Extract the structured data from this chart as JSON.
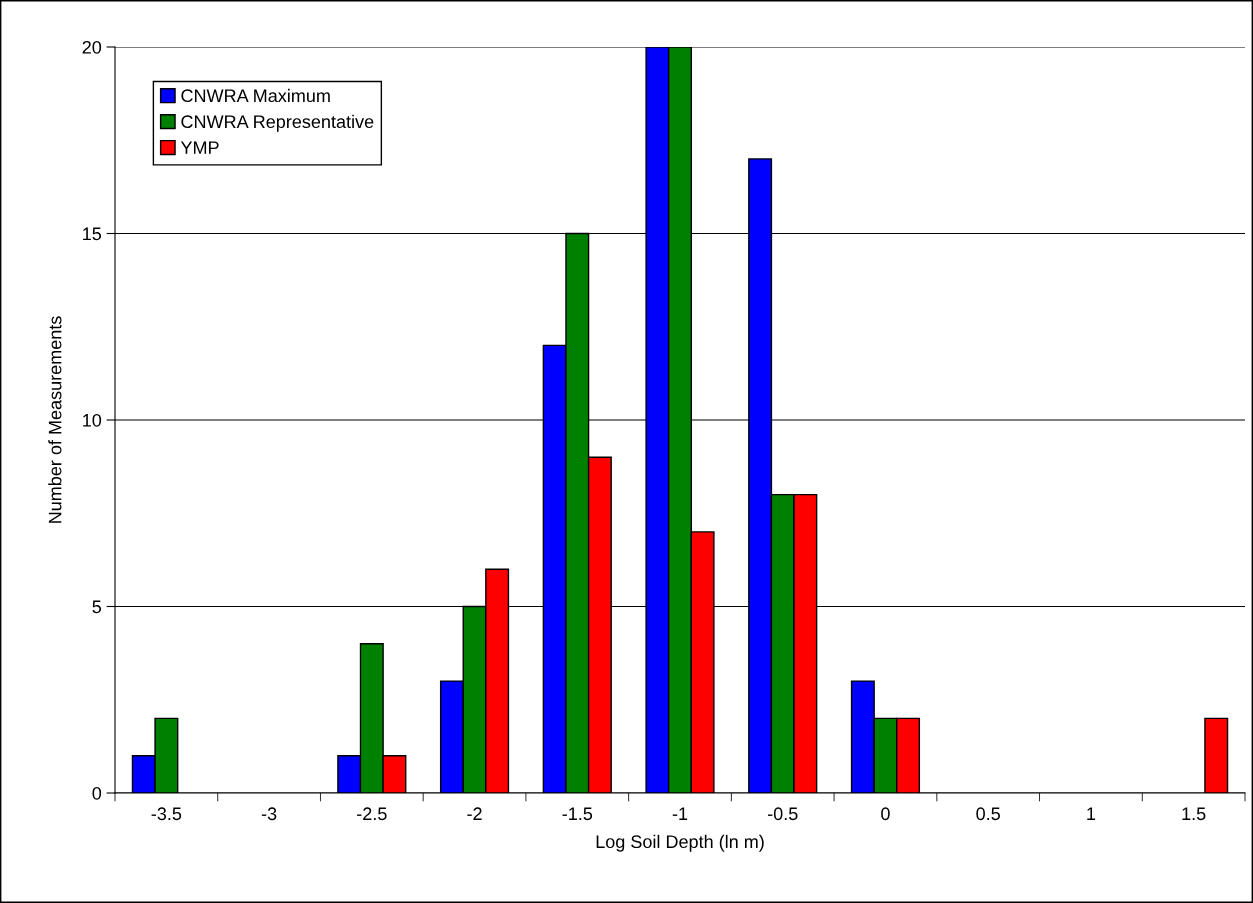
{
  "chart_data": {
    "type": "bar",
    "xlabel": "Log Soil Depth (ln m)",
    "ylabel": "Number of Measurements",
    "categories": [
      "-3.5",
      "-3",
      "-2.5",
      "-2",
      "-1.5",
      "-1",
      "-0.5",
      "0",
      "0.5",
      "1",
      "1.5"
    ],
    "series": [
      {
        "name": "CNWRA Maximum",
        "color": "#0000ff",
        "values": [
          1,
          0,
          1,
          3,
          12,
          20,
          17,
          3,
          0,
          0,
          0
        ]
      },
      {
        "name": "CNWRA Representative",
        "color": "#008000",
        "values": [
          2,
          0,
          4,
          5,
          15,
          20,
          8,
          2,
          0,
          0,
          0
        ]
      },
      {
        "name": "YMP",
        "color": "#ff0000",
        "values": [
          0,
          0,
          1,
          6,
          9,
          7,
          8,
          2,
          0,
          0,
          2
        ]
      }
    ],
    "ylim": [
      0,
      20
    ],
    "yticks": [
      0,
      5,
      10,
      15,
      20
    ],
    "grid": "y",
    "legend": "top left"
  }
}
